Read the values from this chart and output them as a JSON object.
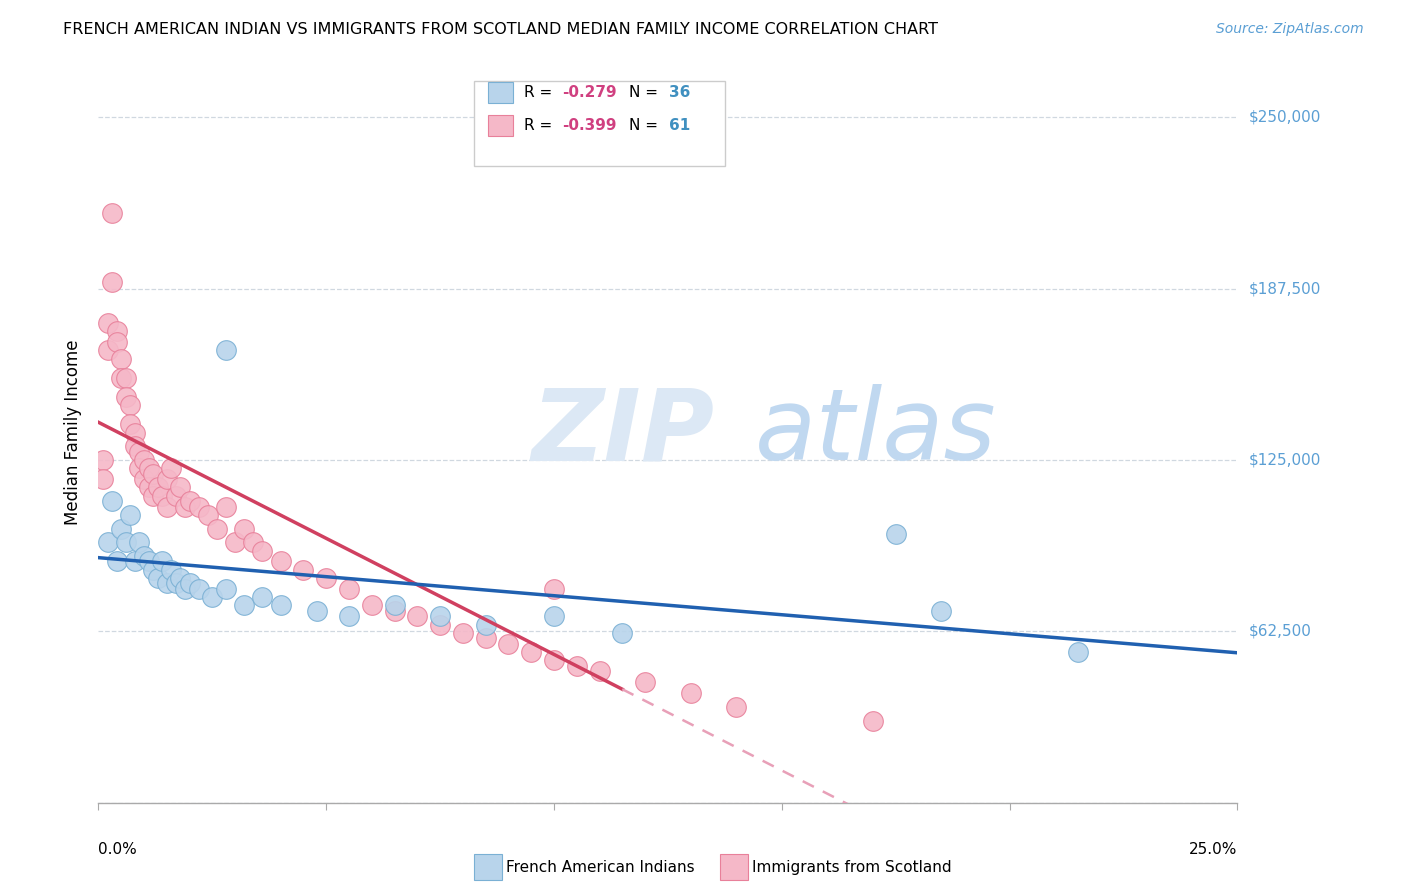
{
  "title": "FRENCH AMERICAN INDIAN VS IMMIGRANTS FROM SCOTLAND MEDIAN FAMILY INCOME CORRELATION CHART",
  "source": "Source: ZipAtlas.com",
  "ylabel": "Median Family Income",
  "yticks": [
    0,
    62500,
    125000,
    187500,
    250000
  ],
  "ytick_labels": [
    "",
    "$62,500",
    "$125,000",
    "$187,500",
    "$250,000"
  ],
  "xlim": [
    0.0,
    0.25
  ],
  "ylim": [
    0,
    270000
  ],
  "legend_label1": "French American Indians",
  "legend_label2": "Immigrants from Scotland",
  "blue_fill": "#b8d4eb",
  "blue_edge": "#7ab0d4",
  "pink_fill": "#f5b8c8",
  "pink_edge": "#e8809a",
  "trend_blue": "#2060b0",
  "trend_pink": "#d04060",
  "trend_pink_dash": "#e8a0b8",
  "blue_x": [
    0.002,
    0.003,
    0.004,
    0.005,
    0.006,
    0.007,
    0.008,
    0.009,
    0.01,
    0.011,
    0.012,
    0.013,
    0.014,
    0.015,
    0.016,
    0.017,
    0.018,
    0.019,
    0.02,
    0.022,
    0.025,
    0.028,
    0.032,
    0.036,
    0.04,
    0.048,
    0.055,
    0.065,
    0.075,
    0.085,
    0.1,
    0.115,
    0.175,
    0.185,
    0.215,
    0.028
  ],
  "blue_y": [
    95000,
    110000,
    88000,
    100000,
    95000,
    105000,
    88000,
    95000,
    90000,
    88000,
    85000,
    82000,
    88000,
    80000,
    85000,
    80000,
    82000,
    78000,
    80000,
    78000,
    75000,
    78000,
    72000,
    75000,
    72000,
    70000,
    68000,
    72000,
    68000,
    65000,
    68000,
    62000,
    98000,
    70000,
    55000,
    165000
  ],
  "pink_x": [
    0.001,
    0.001,
    0.002,
    0.002,
    0.003,
    0.003,
    0.004,
    0.004,
    0.005,
    0.005,
    0.006,
    0.006,
    0.007,
    0.007,
    0.008,
    0.008,
    0.009,
    0.009,
    0.01,
    0.01,
    0.011,
    0.011,
    0.012,
    0.012,
    0.013,
    0.014,
    0.015,
    0.015,
    0.016,
    0.017,
    0.018,
    0.019,
    0.02,
    0.022,
    0.024,
    0.026,
    0.028,
    0.03,
    0.032,
    0.034,
    0.036,
    0.04,
    0.045,
    0.05,
    0.055,
    0.06,
    0.065,
    0.07,
    0.075,
    0.08,
    0.085,
    0.09,
    0.095,
    0.1,
    0.105,
    0.11,
    0.12,
    0.13,
    0.14,
    0.17,
    0.1
  ],
  "pink_y": [
    125000,
    118000,
    175000,
    165000,
    215000,
    190000,
    172000,
    168000,
    162000,
    155000,
    155000,
    148000,
    145000,
    138000,
    135000,
    130000,
    128000,
    122000,
    125000,
    118000,
    122000,
    115000,
    120000,
    112000,
    115000,
    112000,
    118000,
    108000,
    122000,
    112000,
    115000,
    108000,
    110000,
    108000,
    105000,
    100000,
    108000,
    95000,
    100000,
    95000,
    92000,
    88000,
    85000,
    82000,
    78000,
    72000,
    70000,
    68000,
    65000,
    62000,
    60000,
    58000,
    55000,
    52000,
    50000,
    48000,
    44000,
    40000,
    35000,
    30000,
    78000
  ]
}
